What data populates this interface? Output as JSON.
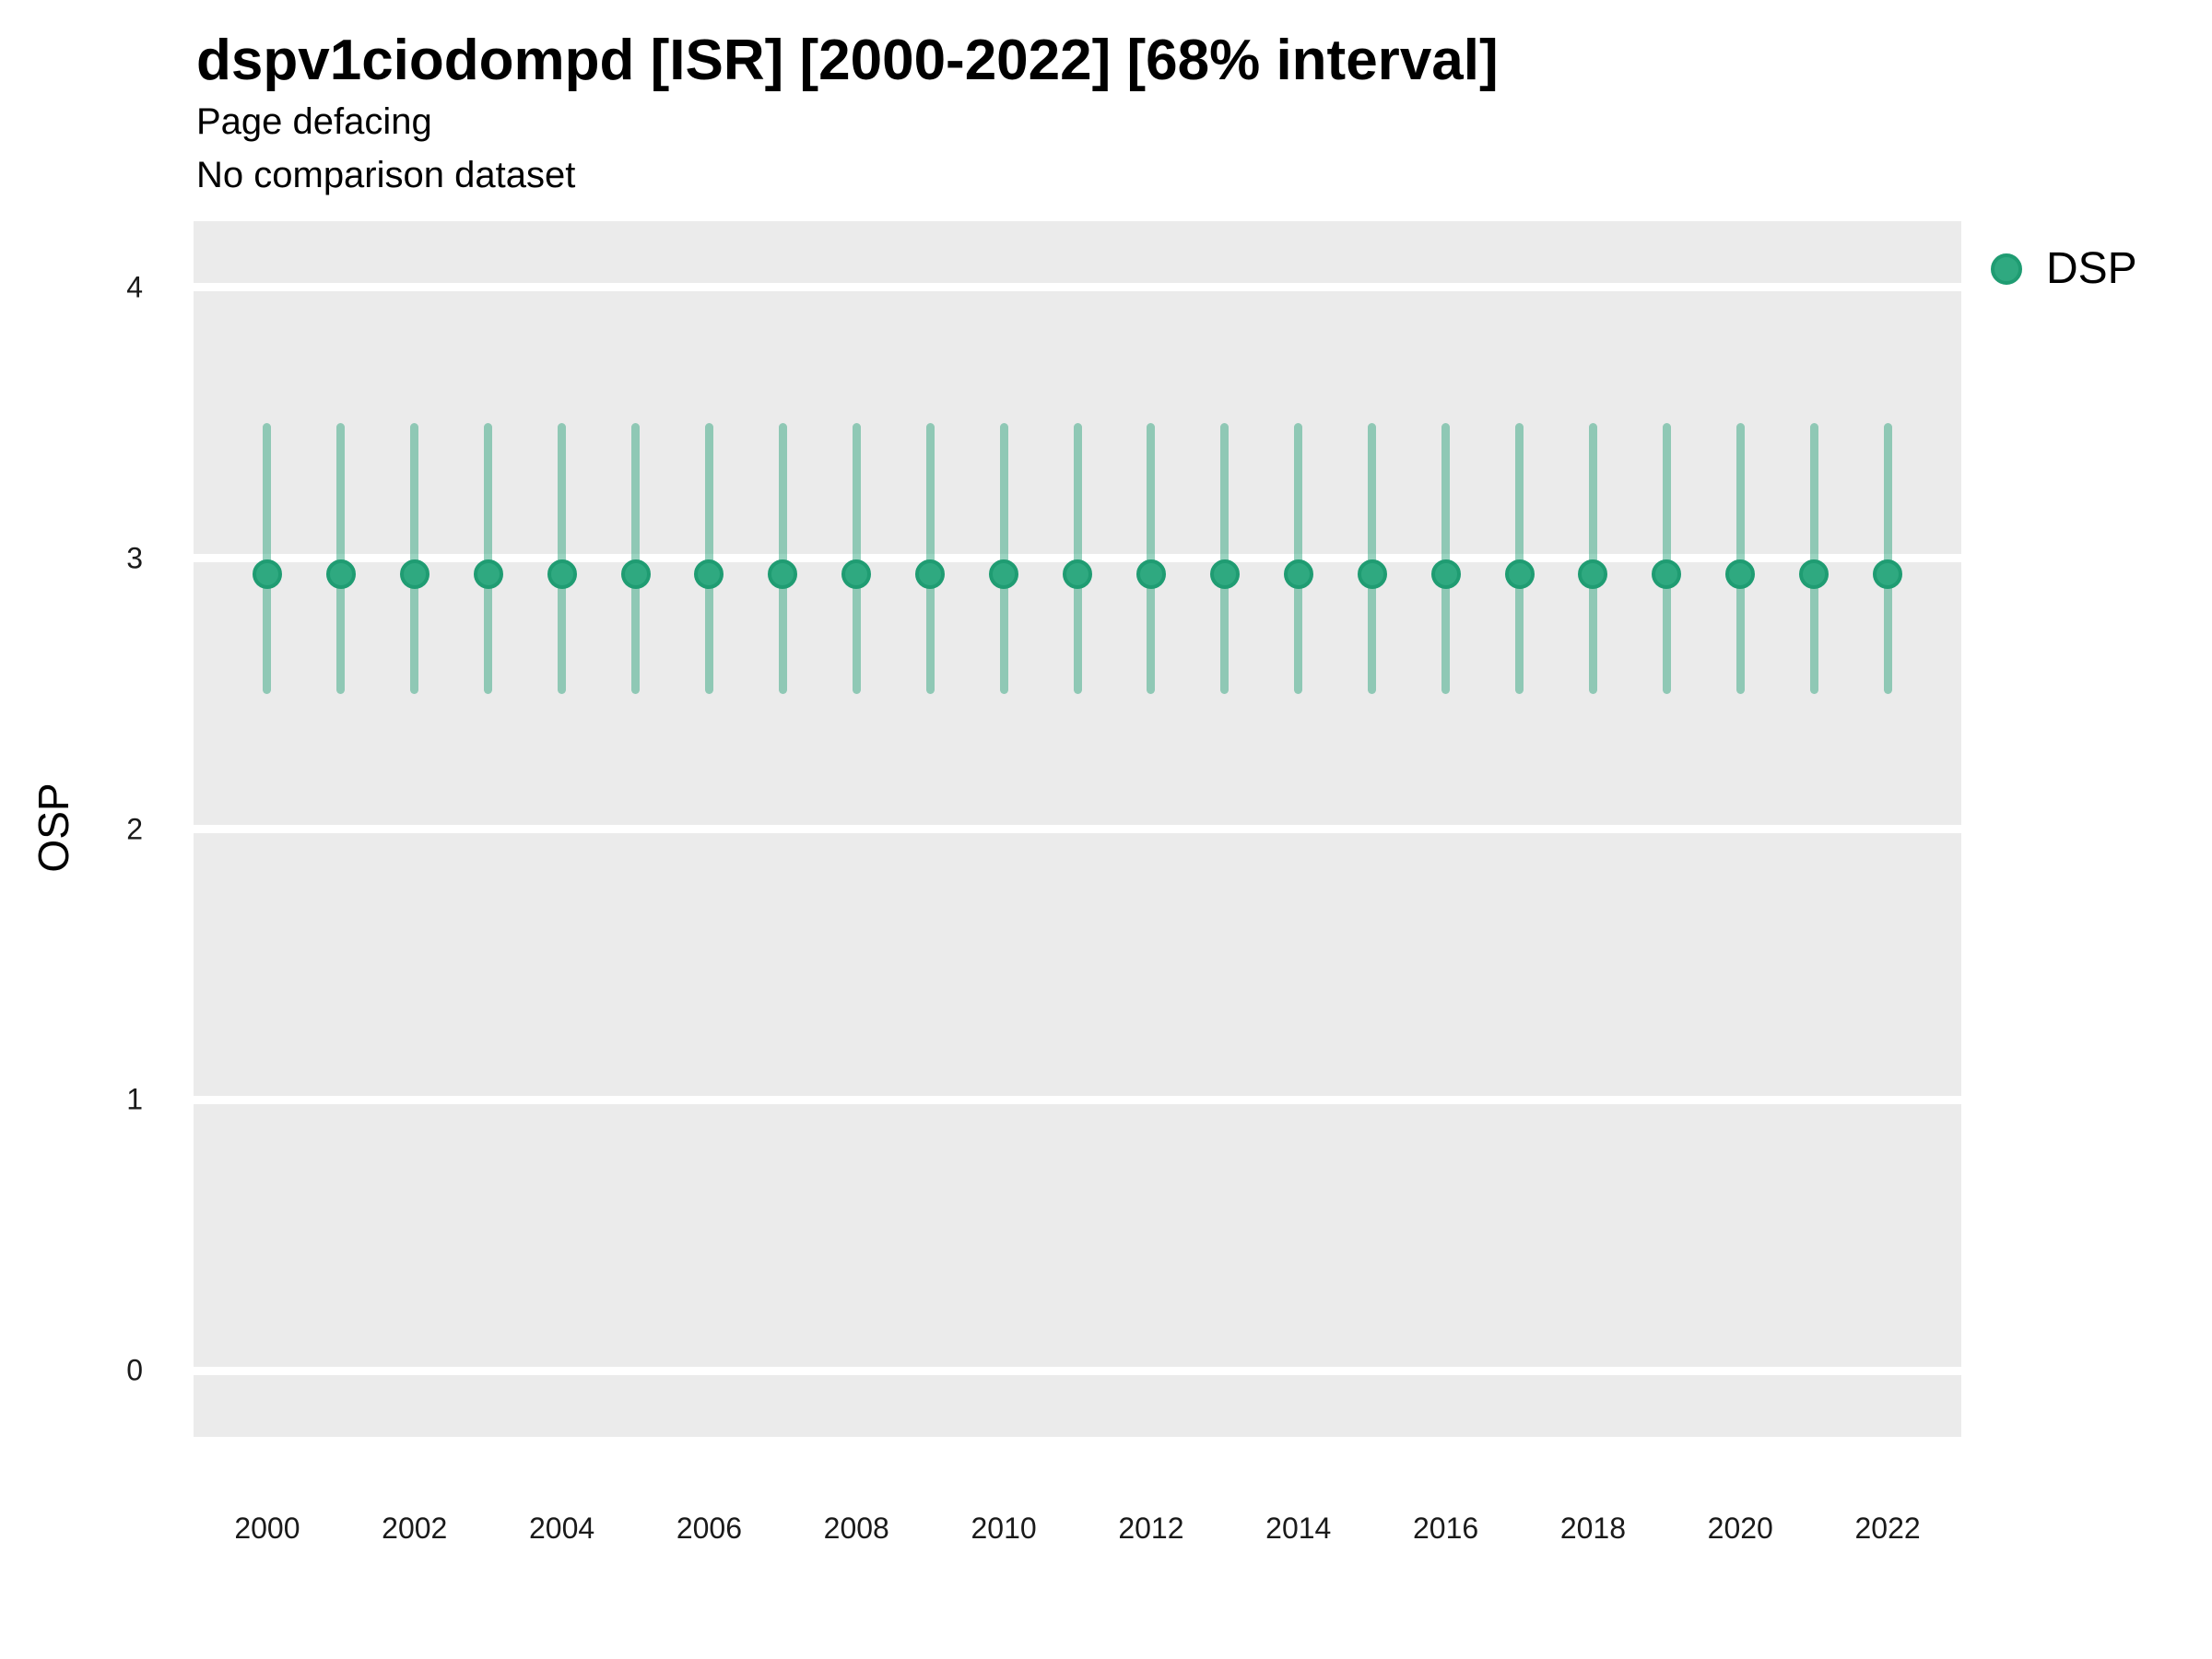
{
  "header": {
    "title": "dspv1ciodompd [ISR] [2000-2022] [68% interval]",
    "subtitle_line1": "Page defacing",
    "subtitle_line2": "No comparison dataset"
  },
  "legend": {
    "position": "right-top",
    "items": [
      {
        "label": "DSP",
        "color": "#2fa980"
      }
    ]
  },
  "colors": {
    "point_fill": "#2fa980",
    "point_border": "#1f9c72",
    "interval": "rgba(31, 158, 115, 0.45)",
    "panel_bg": "#ebebeb",
    "gridline": "#ffffff",
    "tick_text": "#1a1a1a",
    "title_text": "#000000"
  },
  "chart_data": {
    "type": "scatter",
    "subtype": "pointrange",
    "title": "dspv1ciodompd [ISR] [2000-2022] [68% interval]",
    "subtitle": [
      "Page defacing",
      "No comparison dataset"
    ],
    "xlabel": "",
    "ylabel": "OSP",
    "grid": "horizontal-major-only",
    "legend_position": "right",
    "x_ticks": [
      2000,
      2002,
      2004,
      2006,
      2008,
      2010,
      2012,
      2014,
      2016,
      2018,
      2020,
      2022
    ],
    "y_ticks": [
      0,
      1,
      2,
      3,
      4
    ],
    "xlim": [
      1999,
      2023
    ],
    "ylim": [
      -0.245,
      4.245
    ],
    "series": [
      {
        "name": "DSP",
        "x": [
          2000,
          2001,
          2002,
          2003,
          2004,
          2005,
          2006,
          2007,
          2008,
          2009,
          2010,
          2011,
          2012,
          2013,
          2014,
          2015,
          2016,
          2017,
          2018,
          2019,
          2020,
          2021,
          2022
        ],
        "y": [
          2.94,
          2.94,
          2.94,
          2.94,
          2.94,
          2.94,
          2.94,
          2.94,
          2.94,
          2.94,
          2.94,
          2.94,
          2.94,
          2.94,
          2.94,
          2.94,
          2.94,
          2.94,
          2.94,
          2.94,
          2.94,
          2.94,
          2.94
        ],
        "y_low": [
          2.5,
          2.5,
          2.5,
          2.5,
          2.5,
          2.5,
          2.5,
          2.5,
          2.5,
          2.5,
          2.5,
          2.5,
          2.5,
          2.5,
          2.5,
          2.5,
          2.5,
          2.5,
          2.5,
          2.5,
          2.5,
          2.5,
          2.5
        ],
        "y_high": [
          3.5,
          3.5,
          3.5,
          3.5,
          3.5,
          3.5,
          3.5,
          3.5,
          3.5,
          3.5,
          3.5,
          3.5,
          3.5,
          3.5,
          3.5,
          3.5,
          3.5,
          3.5,
          3.5,
          3.5,
          3.5,
          3.5,
          3.5
        ]
      }
    ]
  }
}
